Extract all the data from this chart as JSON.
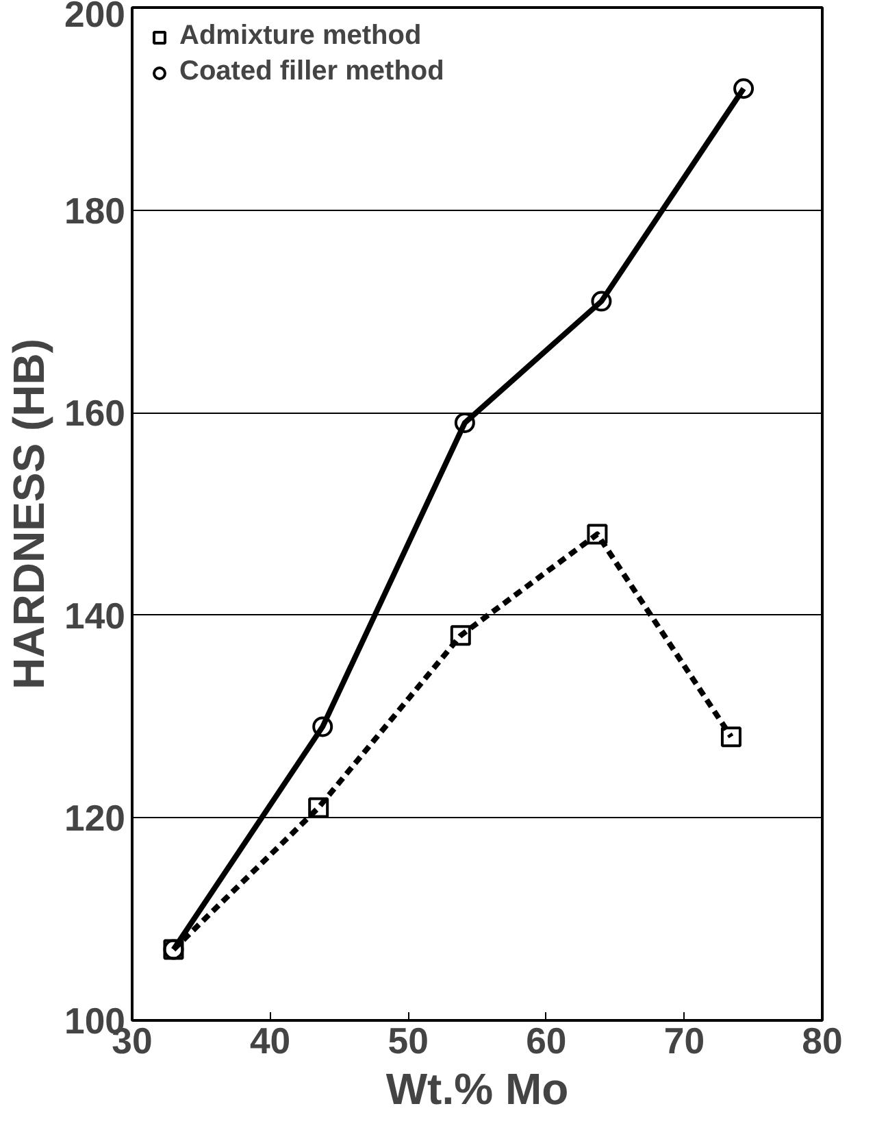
{
  "chart_data": {
    "type": "line",
    "xlabel": "Wt.% Mo",
    "ylabel": "HARDNESS (HB)",
    "xlim": [
      30,
      80
    ],
    "ylim": [
      100,
      200
    ],
    "xticks": [
      30,
      40,
      50,
      60,
      70,
      80
    ],
    "yticks": [
      100,
      120,
      140,
      160,
      180,
      200
    ],
    "grid": "y",
    "legend": "top left",
    "series": [
      {
        "name": "Admixture method",
        "color": "#000000",
        "marker": "square",
        "line_style": "dashed",
        "x": [
          33,
          43.5,
          53.8,
          63.7,
          73.4
        ],
        "values": [
          107,
          121,
          138,
          148,
          128
        ]
      },
      {
        "name": "Coated filler method",
        "color": "#000000",
        "marker": "circle",
        "line_style": "solid",
        "x": [
          33,
          43.8,
          54.1,
          64,
          74.3
        ],
        "values": [
          107,
          129,
          159,
          171,
          192
        ]
      }
    ]
  }
}
